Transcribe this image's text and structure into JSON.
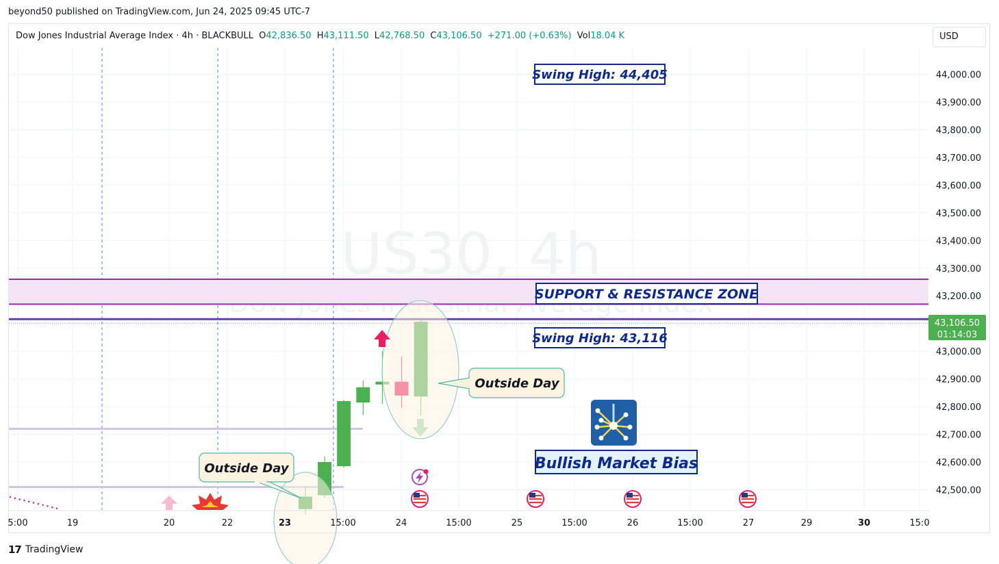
{
  "header": {
    "published": "beyond50 published on TradingView.com, Jun 24, 2025 09:45 UTC-7"
  },
  "legend": {
    "symbol": "Dow Jones Industrial Average Index · 4h · BLACKBULL",
    "o_label": "O",
    "o_value": "42,836.50",
    "h_label": "H",
    "h_value": "43,111.50",
    "l_label": "L",
    "l_value": "42,768.50",
    "c_label": "C",
    "c_value": "43,106.50",
    "change": "+271.00 (+0.63%)",
    "vol_label": "Vol",
    "vol_value": "18.04 K"
  },
  "currency": "USD",
  "watermark": {
    "line1": "US30, 4h",
    "line2": "Dow Jones Industrial Average Index"
  },
  "price_badge": {
    "price": "43,106.50",
    "countdown": "01:14:03",
    "color": "#4caf50"
  },
  "footer": {
    "brand": "TradingView"
  },
  "colors": {
    "up": "#4caf50",
    "down": "#e91e63",
    "swing_line": "#673ab7",
    "zone_line": "#9c27b0",
    "zone_fill": "#f3e5f5",
    "annotation_text": "#0d2a8a",
    "level_line": "#d1c4e9"
  },
  "chart_data": {
    "type": "candlestick",
    "ylim": [
      42440,
      44470
    ],
    "y_ticks": [
      {
        "value": 44000,
        "label": "44,000.00"
      },
      {
        "value": 43900,
        "label": "43,900.00"
      },
      {
        "value": 43800,
        "label": "43,800.00"
      },
      {
        "value": 43700,
        "label": "43,700.00"
      },
      {
        "value": 43600,
        "label": "43,600.00"
      },
      {
        "value": 43500,
        "label": "43,500.00"
      },
      {
        "value": 43400,
        "label": "43,400.00"
      },
      {
        "value": 43300,
        "label": "43,300.00"
      },
      {
        "value": 43200,
        "label": "43,200.00"
      },
      {
        "value": 43000,
        "label": "43,000.00"
      },
      {
        "value": 42900,
        "label": "42,900.00"
      },
      {
        "value": 42800,
        "label": "42,800.00"
      },
      {
        "value": 42700,
        "label": "42,700.00"
      },
      {
        "value": 42600,
        "label": "42,600.00"
      },
      {
        "value": 42500,
        "label": "42,500.00"
      }
    ],
    "x_ticks": [
      {
        "label": "5:00",
        "bold": false
      },
      {
        "label": "19",
        "bold": false
      },
      {
        "label": "20",
        "bold": false
      },
      {
        "label": "22",
        "bold": false
      },
      {
        "label": "23",
        "bold": true
      },
      {
        "label": "15:00",
        "bold": false
      },
      {
        "label": "24",
        "bold": false
      },
      {
        "label": "15:00",
        "bold": false
      },
      {
        "label": "25",
        "bold": false
      },
      {
        "label": "15:00",
        "bold": false
      },
      {
        "label": "26",
        "bold": false
      },
      {
        "label": "15:00",
        "bold": false
      },
      {
        "label": "27",
        "bold": false
      },
      {
        "label": "29",
        "bold": false
      },
      {
        "label": "30",
        "bold": true
      },
      {
        "label": "15:0",
        "bold": false
      }
    ],
    "candles": [
      {
        "o": 42430,
        "h": 42510,
        "l": 42410,
        "c": 42475,
        "dir": "up"
      },
      {
        "o": 42480,
        "h": 42620,
        "l": 42470,
        "c": 42600,
        "dir": "up"
      },
      {
        "o": 42585,
        "h": 42825,
        "l": 42580,
        "c": 42820,
        "dir": "up"
      },
      {
        "o": 42815,
        "h": 42895,
        "l": 42770,
        "c": 42870,
        "dir": "up"
      },
      {
        "o": 42880,
        "h": 43000,
        "l": 42810,
        "c": 42890,
        "dir": "up"
      },
      {
        "o": 42890,
        "h": 42980,
        "l": 42795,
        "c": 42840,
        "dir": "down"
      },
      {
        "o": 42836.5,
        "h": 43111.5,
        "l": 42768.5,
        "c": 43106.5,
        "dir": "up"
      }
    ],
    "levels": [
      {
        "label": "Swing High: 44,405",
        "value": 44405
      },
      {
        "label": "SUPPORT & RESISTANCE ZONE",
        "from": 43170,
        "to": 43260
      },
      {
        "label": "Swing High: 43,116",
        "value": 43116
      },
      {
        "value": 42720
      },
      {
        "value": 42510
      }
    ],
    "annotations": [
      "Outside Day",
      "Outside Day",
      "Bullish Market Bias"
    ]
  }
}
